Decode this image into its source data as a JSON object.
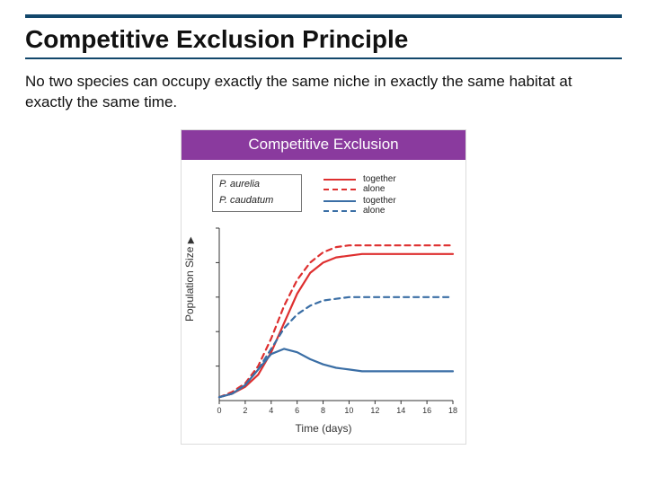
{
  "header": {
    "title": "Competitive Exclusion Principle",
    "rule_color": "#12476b"
  },
  "body": {
    "text": "No two species can occupy exactly the same niche in exactly the same habitat at exactly the same time."
  },
  "figure": {
    "title": "Competitive Exclusion",
    "title_bg": "#8a3a9e",
    "border_color": "#dcdcdc",
    "background_color": "#ffffff",
    "legend": {
      "species": [
        {
          "name": "P. aurelia",
          "style": "italic",
          "color": "#de2f2f"
        },
        {
          "name": "P. caudatum",
          "style": "italic",
          "color": "#3a6ea5"
        }
      ],
      "conditions": [
        {
          "label": "together",
          "dash": "solid"
        },
        {
          "label": "alone",
          "dash": "dashed"
        }
      ],
      "box_border": "#888888",
      "line_width": 2
    },
    "chart": {
      "type": "line",
      "xlabel": "Time (days)",
      "ylabel": "Population Size",
      "y_arrow": true,
      "xlim": [
        0,
        18
      ],
      "ylim": [
        0,
        100
      ],
      "xticks": [
        0,
        2,
        4,
        6,
        8,
        10,
        12,
        14,
        16,
        18
      ],
      "yticks_minor_count": 5,
      "axis_color": "#333333",
      "axis_width": 1,
      "plot_bg": "#ffffff",
      "label_fontsize": 12,
      "tick_fontsize": 9,
      "line_width": 2.2,
      "series": [
        {
          "name": "P. aurelia together",
          "color": "#de2f2f",
          "dash": "solid",
          "x": [
            0,
            1,
            2,
            3,
            4,
            5,
            6,
            7,
            8,
            9,
            10,
            11,
            12,
            13,
            14,
            15,
            16,
            17,
            18
          ],
          "y": [
            2,
            4,
            8,
            15,
            28,
            45,
            62,
            74,
            80,
            83,
            84,
            85,
            85,
            85,
            85,
            85,
            85,
            85,
            85
          ]
        },
        {
          "name": "P. aurelia alone",
          "color": "#de2f2f",
          "dash": "dashed",
          "x": [
            0,
            1,
            2,
            3,
            4,
            5,
            6,
            7,
            8,
            9,
            10,
            11,
            12,
            13,
            14,
            15,
            16,
            17,
            18
          ],
          "y": [
            2,
            5,
            10,
            20,
            36,
            55,
            70,
            80,
            86,
            89,
            90,
            90,
            90,
            90,
            90,
            90,
            90,
            90,
            90
          ]
        },
        {
          "name": "P. caudatum together",
          "color": "#3a6ea5",
          "dash": "solid",
          "x": [
            0,
            1,
            2,
            3,
            4,
            5,
            6,
            7,
            8,
            9,
            10,
            11,
            12,
            13,
            14,
            15,
            16,
            17,
            18
          ],
          "y": [
            2,
            4,
            9,
            18,
            27,
            30,
            28,
            24,
            21,
            19,
            18,
            17,
            17,
            17,
            17,
            17,
            17,
            17,
            17
          ]
        },
        {
          "name": "P. caudatum alone",
          "color": "#3a6ea5",
          "dash": "dashed",
          "x": [
            0,
            1,
            2,
            3,
            4,
            5,
            6,
            7,
            8,
            9,
            10,
            11,
            12,
            13,
            14,
            15,
            16,
            17,
            18
          ],
          "y": [
            2,
            4,
            9,
            18,
            30,
            42,
            50,
            55,
            58,
            59,
            60,
            60,
            60,
            60,
            60,
            60,
            60,
            60,
            60
          ]
        }
      ]
    }
  }
}
